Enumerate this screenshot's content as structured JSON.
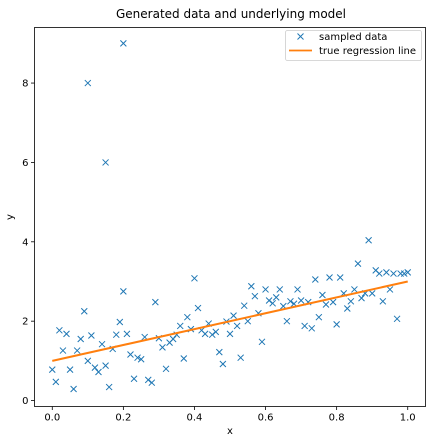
{
  "chart_data": {
    "type": "scatter",
    "title": "Generated data and underlying model",
    "xlabel": "x",
    "ylabel": "y",
    "xlim": [
      -0.05,
      1.05
    ],
    "ylim": [
      -0.15,
      9.4
    ],
    "xticks": [
      0.0,
      0.2,
      0.4,
      0.6,
      0.8,
      1.0
    ],
    "xtick_labels": [
      "0.0",
      "0.2",
      "0.4",
      "0.6",
      "0.8",
      "1.0"
    ],
    "yticks": [
      0,
      2,
      4,
      6,
      8
    ],
    "ytick_labels": [
      "0",
      "2",
      "4",
      "6",
      "8"
    ],
    "grid": false,
    "legend_position": "top-right",
    "series": [
      {
        "name": "sampled data",
        "kind": "scatter",
        "marker": "x",
        "color": "#1f77b4",
        "points": [
          [
            0.0,
            0.78
          ],
          [
            0.01,
            0.47
          ],
          [
            0.02,
            1.77
          ],
          [
            0.03,
            1.26
          ],
          [
            0.04,
            1.68
          ],
          [
            0.05,
            0.78
          ],
          [
            0.06,
            0.29
          ],
          [
            0.07,
            1.26
          ],
          [
            0.08,
            1.55
          ],
          [
            0.09,
            2.25
          ],
          [
            0.1,
            8.0
          ],
          [
            0.1,
            1.0
          ],
          [
            0.11,
            1.64
          ],
          [
            0.12,
            0.83
          ],
          [
            0.13,
            0.72
          ],
          [
            0.14,
            1.42
          ],
          [
            0.15,
            6.0
          ],
          [
            0.15,
            0.88
          ],
          [
            0.16,
            0.34
          ],
          [
            0.17,
            1.3
          ],
          [
            0.18,
            1.66
          ],
          [
            0.19,
            1.98
          ],
          [
            0.2,
            9.0
          ],
          [
            0.2,
            2.75
          ],
          [
            0.21,
            1.68
          ],
          [
            0.22,
            1.16
          ],
          [
            0.23,
            0.55
          ],
          [
            0.24,
            1.08
          ],
          [
            0.25,
            1.04
          ],
          [
            0.26,
            1.6
          ],
          [
            0.27,
            0.52
          ],
          [
            0.28,
            0.45
          ],
          [
            0.29,
            2.48
          ],
          [
            0.3,
            1.57
          ],
          [
            0.31,
            1.34
          ],
          [
            0.32,
            0.8
          ],
          [
            0.33,
            1.46
          ],
          [
            0.34,
            1.55
          ],
          [
            0.35,
            1.66
          ],
          [
            0.36,
            1.88
          ],
          [
            0.37,
            1.06
          ],
          [
            0.38,
            2.1
          ],
          [
            0.39,
            1.8
          ],
          [
            0.4,
            3.08
          ],
          [
            0.41,
            2.33
          ],
          [
            0.42,
            1.77
          ],
          [
            0.43,
            1.68
          ],
          [
            0.44,
            1.94
          ],
          [
            0.45,
            1.66
          ],
          [
            0.46,
            1.73
          ],
          [
            0.47,
            1.22
          ],
          [
            0.48,
            0.92
          ],
          [
            0.49,
            1.99
          ],
          [
            0.5,
            1.68
          ],
          [
            0.51,
            2.14
          ],
          [
            0.52,
            1.88
          ],
          [
            0.53,
            1.08
          ],
          [
            0.54,
            2.39
          ],
          [
            0.55,
            2.0
          ],
          [
            0.56,
            2.88
          ],
          [
            0.57,
            2.63
          ],
          [
            0.58,
            2.2
          ],
          [
            0.59,
            1.48
          ],
          [
            0.6,
            2.8
          ],
          [
            0.61,
            2.52
          ],
          [
            0.62,
            2.45
          ],
          [
            0.63,
            2.6
          ],
          [
            0.64,
            2.8
          ],
          [
            0.65,
            2.38
          ],
          [
            0.66,
            2.0
          ],
          [
            0.67,
            2.5
          ],
          [
            0.68,
            2.44
          ],
          [
            0.69,
            2.8
          ],
          [
            0.7,
            2.52
          ],
          [
            0.71,
            1.88
          ],
          [
            0.72,
            2.48
          ],
          [
            0.73,
            1.82
          ],
          [
            0.74,
            3.05
          ],
          [
            0.75,
            2.1
          ],
          [
            0.76,
            2.66
          ],
          [
            0.77,
            2.42
          ],
          [
            0.78,
            3.1
          ],
          [
            0.79,
            2.48
          ],
          [
            0.8,
            1.92
          ],
          [
            0.81,
            3.1
          ],
          [
            0.82,
            2.7
          ],
          [
            0.83,
            2.32
          ],
          [
            0.84,
            2.5
          ],
          [
            0.85,
            2.8
          ],
          [
            0.86,
            3.45
          ],
          [
            0.87,
            2.58
          ],
          [
            0.88,
            2.7
          ],
          [
            0.89,
            4.04
          ],
          [
            0.9,
            2.7
          ],
          [
            0.91,
            3.28
          ],
          [
            0.92,
            3.2
          ],
          [
            0.93,
            2.5
          ],
          [
            0.94,
            3.23
          ],
          [
            0.95,
            2.8
          ],
          [
            0.96,
            3.2
          ],
          [
            0.97,
            2.06
          ],
          [
            0.98,
            3.2
          ],
          [
            0.99,
            3.2
          ],
          [
            1.0,
            3.23
          ]
        ]
      },
      {
        "name": "true regression line",
        "kind": "line",
        "color": "#ff7f0e",
        "points": [
          [
            0.0,
            1.0
          ],
          [
            1.0,
            3.0
          ]
        ]
      }
    ]
  }
}
